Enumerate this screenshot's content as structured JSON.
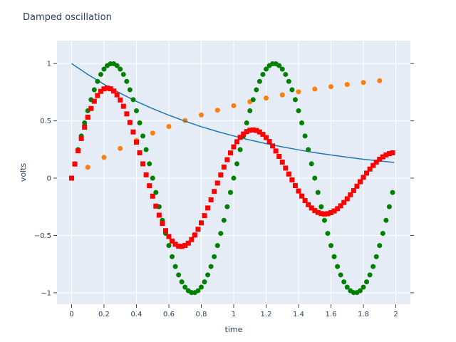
{
  "chart_data": {
    "type": "scatter",
    "title": "Damped oscillation",
    "xlabel": "time",
    "ylabel": "volts",
    "xlim": [
      -0.09,
      2.09
    ],
    "ylim": [
      -1.1,
      1.2
    ],
    "grid": true,
    "legend": false,
    "colors": {
      "plot_bg": "#e5ecf6",
      "page_bg": "#ffffff",
      "axis_text": "#2a3f5f"
    },
    "x_ticks": [
      {
        "value": 0,
        "label": "0"
      },
      {
        "value": 0.2,
        "label": "0.2"
      },
      {
        "value": 0.4,
        "label": "0.4"
      },
      {
        "value": 0.6,
        "label": "0.6"
      },
      {
        "value": 0.8,
        "label": "0.8"
      },
      {
        "value": 1,
        "label": "1"
      },
      {
        "value": 1.2,
        "label": "1.2"
      },
      {
        "value": 1.4,
        "label": "1.4"
      },
      {
        "value": 1.6,
        "label": "1.6"
      },
      {
        "value": 1.8,
        "label": "1.8"
      },
      {
        "value": 2,
        "label": "2"
      }
    ],
    "y_ticks": [
      {
        "value": 1,
        "label": "1"
      },
      {
        "value": 0.5,
        "label": "0.5"
      },
      {
        "value": 0,
        "label": "0"
      },
      {
        "value": -0.5,
        "label": "−0.5"
      },
      {
        "value": -1,
        "label": "−1"
      }
    ],
    "series": [
      {
        "mode": "markers",
        "marker": "circle",
        "color": "#ff7f0e",
        "x": [
          0.1,
          0.2,
          0.3,
          0.4,
          0.5,
          0.6,
          0.7,
          0.8,
          0.9,
          1.0,
          1.1,
          1.2,
          1.3,
          1.4,
          1.5,
          1.6,
          1.7,
          1.8,
          1.9
        ],
        "y": [
          0.095,
          0.181,
          0.259,
          0.33,
          0.393,
          0.451,
          0.503,
          0.551,
          0.593,
          0.632,
          0.667,
          0.699,
          0.727,
          0.753,
          0.777,
          0.798,
          0.817,
          0.835,
          0.85
        ]
      },
      {
        "mode": "line",
        "color": "#1f77b4",
        "x": [
          0,
          0.1,
          0.2,
          0.3,
          0.4,
          0.5,
          0.6,
          0.7,
          0.8,
          0.9,
          1.0,
          1.1,
          1.2,
          1.3,
          1.4,
          1.5,
          1.6,
          1.7,
          1.8,
          1.9,
          1.99
        ],
        "y": [
          1.0,
          0.905,
          0.819,
          0.741,
          0.67,
          0.607,
          0.549,
          0.497,
          0.449,
          0.407,
          0.368,
          0.333,
          0.301,
          0.273,
          0.247,
          0.223,
          0.202,
          0.183,
          0.165,
          0.15,
          0.137
        ]
      },
      {
        "mode": "markers",
        "marker": "circle",
        "color": "#008000",
        "x": [
          0,
          0.02,
          0.04,
          0.06,
          0.08,
          0.1,
          0.12,
          0.14,
          0.16,
          0.18,
          0.2,
          0.22,
          0.24,
          0.26,
          0.28,
          0.3,
          0.32,
          0.34,
          0.36,
          0.38,
          0.4,
          0.42,
          0.44,
          0.46,
          0.48,
          0.5,
          0.52,
          0.54,
          0.56,
          0.58,
          0.6,
          0.62,
          0.64,
          0.66,
          0.68,
          0.7,
          0.72,
          0.74,
          0.76,
          0.78,
          0.8,
          0.82,
          0.84,
          0.86,
          0.88,
          0.9,
          0.92,
          0.94,
          0.96,
          0.98,
          1.0,
          1.02,
          1.04,
          1.06,
          1.08,
          1.1,
          1.12,
          1.14,
          1.16,
          1.18,
          1.2,
          1.22,
          1.24,
          1.26,
          1.28,
          1.3,
          1.32,
          1.34,
          1.36,
          1.38,
          1.4,
          1.42,
          1.44,
          1.46,
          1.48,
          1.5,
          1.52,
          1.54,
          1.56,
          1.58,
          1.6,
          1.62,
          1.64,
          1.66,
          1.68,
          1.7,
          1.72,
          1.74,
          1.76,
          1.78,
          1.8,
          1.82,
          1.84,
          1.86,
          1.88,
          1.9,
          1.92,
          1.94,
          1.96,
          1.98
        ],
        "y": [
          0.0,
          0.125,
          0.249,
          0.368,
          0.482,
          0.588,
          0.685,
          0.771,
          0.844,
          0.905,
          0.951,
          0.982,
          0.998,
          0.998,
          0.982,
          0.951,
          0.905,
          0.844,
          0.771,
          0.685,
          0.588,
          0.482,
          0.368,
          0.249,
          0.125,
          0.0,
          -0.125,
          -0.249,
          -0.368,
          -0.482,
          -0.588,
          -0.685,
          -0.771,
          -0.844,
          -0.905,
          -0.951,
          -0.982,
          -0.998,
          -0.998,
          -0.982,
          -0.951,
          -0.905,
          -0.844,
          -0.771,
          -0.685,
          -0.588,
          -0.482,
          -0.368,
          -0.249,
          -0.125,
          0.0,
          0.125,
          0.249,
          0.368,
          0.482,
          0.588,
          0.685,
          0.771,
          0.844,
          0.905,
          0.951,
          0.982,
          0.998,
          0.998,
          0.982,
          0.951,
          0.905,
          0.844,
          0.771,
          0.685,
          0.588,
          0.482,
          0.368,
          0.249,
          0.125,
          0.0,
          -0.125,
          -0.249,
          -0.368,
          -0.482,
          -0.588,
          -0.685,
          -0.771,
          -0.844,
          -0.905,
          -0.951,
          -0.982,
          -0.998,
          -0.998,
          -0.982,
          -0.951,
          -0.905,
          -0.844,
          -0.771,
          -0.685,
          -0.588,
          -0.482,
          -0.368,
          -0.249,
          -0.125
        ]
      },
      {
        "mode": "markers",
        "marker": "square",
        "color": "#ff0000",
        "x": [
          0,
          0.02,
          0.04,
          0.06,
          0.08,
          0.1,
          0.12,
          0.14,
          0.16,
          0.18,
          0.2,
          0.22,
          0.24,
          0.26,
          0.28,
          0.3,
          0.32,
          0.34,
          0.36,
          0.38,
          0.4,
          0.42,
          0.44,
          0.46,
          0.48,
          0.5,
          0.52,
          0.54,
          0.56,
          0.58,
          0.6,
          0.62,
          0.64,
          0.66,
          0.68,
          0.7,
          0.72,
          0.74,
          0.76,
          0.78,
          0.8,
          0.82,
          0.84,
          0.86,
          0.88,
          0.9,
          0.92,
          0.94,
          0.96,
          0.98,
          1.0,
          1.02,
          1.04,
          1.06,
          1.08,
          1.1,
          1.12,
          1.14,
          1.16,
          1.18,
          1.2,
          1.22,
          1.24,
          1.26,
          1.28,
          1.3,
          1.32,
          1.34,
          1.36,
          1.38,
          1.4,
          1.42,
          1.44,
          1.46,
          1.48,
          1.5,
          1.52,
          1.54,
          1.56,
          1.58,
          1.6,
          1.62,
          1.64,
          1.66,
          1.68,
          1.7,
          1.72,
          1.74,
          1.76,
          1.78,
          1.8,
          1.82,
          1.84,
          1.86,
          1.88,
          1.9,
          1.92,
          1.94,
          1.96,
          1.98
        ],
        "y": [
          0.0,
          0.123,
          0.239,
          0.346,
          0.445,
          0.532,
          0.608,
          0.671,
          0.721,
          0.757,
          0.779,
          0.786,
          0.78,
          0.76,
          0.727,
          0.682,
          0.627,
          0.561,
          0.486,
          0.403,
          0.314,
          0.221,
          0.125,
          0.029,
          -0.066,
          -0.157,
          -0.244,
          -0.323,
          -0.395,
          -0.458,
          -0.509,
          -0.549,
          -0.577,
          -0.593,
          -0.596,
          -0.587,
          -0.567,
          -0.536,
          -0.496,
          -0.446,
          -0.39,
          -0.327,
          -0.26,
          -0.189,
          -0.116,
          -0.043,
          0.028,
          0.097,
          0.161,
          0.22,
          0.273,
          0.318,
          0.356,
          0.385,
          0.406,
          0.418,
          0.421,
          0.416,
          0.403,
          0.382,
          0.354,
          0.32,
          0.281,
          0.237,
          0.19,
          0.14,
          0.088,
          0.036,
          -0.015,
          -0.065,
          -0.112,
          -0.156,
          -0.196,
          -0.231,
          -0.26,
          -0.283,
          -0.299,
          -0.309,
          -0.313,
          -0.31,
          -0.301,
          -0.286,
          -0.266,
          -0.241,
          -0.212,
          -0.18,
          -0.145,
          -0.108,
          -0.07,
          -0.031,
          0.007,
          0.044,
          0.079,
          0.111,
          0.14,
          0.165,
          0.186,
          0.202,
          0.214,
          0.221
        ]
      }
    ]
  }
}
